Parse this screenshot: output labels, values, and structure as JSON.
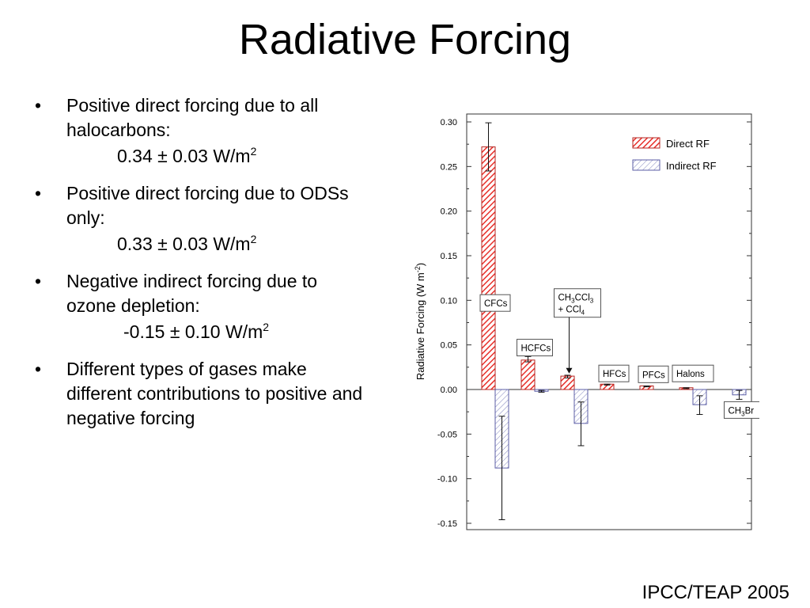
{
  "slide": {
    "title": "Radiative Forcing",
    "citation": "IPCC/TEAP 2005"
  },
  "bullets": [
    {
      "text": "Positive direct forcing due to all halocarbons:",
      "value": "0.34 ± 0.03 W/m",
      "value_sup": "2"
    },
    {
      "text": "Positive direct forcing due to ODSs only:",
      "value": "0.33 ± 0.03 W/m",
      "value_sup": "2"
    },
    {
      "text": "Negative indirect forcing due to ozone depletion:",
      "value": "-0.15 ± 0.10 W/m",
      "value_sup": "2"
    },
    {
      "text": "Different types of gases make different contributions to positive and negative forcing",
      "value": "",
      "value_sup": ""
    }
  ],
  "chart_data": {
    "type": "bar",
    "ylabel": "Radiative Forcing (W m",
    "ylabel_sup": "-2",
    "ylabel_close": ")",
    "ylim": [
      -0.15,
      0.3
    ],
    "yticks": [
      0.3,
      0.25,
      0.2,
      0.15,
      0.1,
      0.05,
      0.0,
      -0.05,
      -0.1,
      -0.15
    ],
    "ytick_labels": [
      "0.30",
      "0.25",
      "0.20",
      "0.15",
      "0.10",
      "0.05",
      "0.00",
      "-0.05",
      "-0.10",
      "-0.15"
    ],
    "legend_position": "top-right",
    "grid": false,
    "series": [
      {
        "name": "Direct RF",
        "color": "#e8302a",
        "values": [
          0.272,
          0.033,
          0.015,
          0.006,
          0.004,
          0.002,
          0.0
        ],
        "errors": [
          [
            0.245,
            0.299
          ],
          [
            0.031,
            0.037
          ],
          [
            0.013,
            0.016
          ],
          [
            0.005,
            0.006
          ],
          [
            0.003,
            0.004
          ],
          [
            0.001,
            0.002
          ],
          null
        ]
      },
      {
        "name": "Indirect RF",
        "color": "#5b5ea6",
        "values": [
          -0.088,
          -0.002,
          -0.038,
          0.0,
          0.0,
          -0.017,
          -0.006
        ],
        "errors": [
          [
            -0.146,
            -0.03
          ],
          [
            -0.003,
            -0.001
          ],
          [
            -0.063,
            -0.014
          ],
          null,
          null,
          [
            -0.028,
            -0.007
          ],
          [
            -0.011,
            -0.001
          ]
        ]
      }
    ],
    "annotations": [
      {
        "lines": [
          "CFCs"
        ],
        "subs": [
          []
        ]
      },
      {
        "lines": [
          "HCFCs"
        ],
        "subs": [
          []
        ]
      },
      {
        "lines": [
          "CH3CCl3",
          "+ CCl4"
        ],
        "subs": [
          [
            2,
            6
          ],
          [
            5
          ]
        ]
      },
      {
        "lines": [
          "HFCs"
        ],
        "subs": [
          []
        ]
      },
      {
        "lines": [
          "PFCs"
        ],
        "subs": [
          []
        ]
      },
      {
        "lines": [
          "Halons"
        ],
        "subs": [
          []
        ]
      },
      {
        "lines": [
          "CH3Br"
        ],
        "subs": [
          [
            2
          ]
        ]
      }
    ]
  }
}
